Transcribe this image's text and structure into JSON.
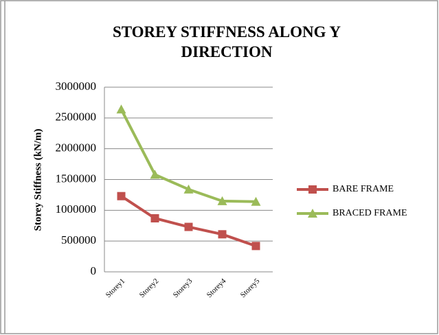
{
  "chart_data": {
    "type": "line",
    "title": "STOREY STIFFNESS ALONG Y DIRECTION",
    "y_label": "Storey Stiffness (kN/m)",
    "categories": [
      "Storey1",
      "Storey2",
      "Storey3",
      "Storey4",
      "Storey5"
    ],
    "series": [
      {
        "name": "BARE FRAME",
        "color": "#c0504d",
        "marker": "square",
        "values": [
          1230000,
          870000,
          730000,
          610000,
          420000
        ]
      },
      {
        "name": "BRACED FRAME",
        "color": "#9bbb59",
        "marker": "triangle",
        "values": [
          2640000,
          1580000,
          1340000,
          1150000,
          1140000
        ]
      }
    ],
    "ylim": [
      0,
      3000000
    ],
    "yticks": [
      0,
      500000,
      1000000,
      1500000,
      2000000,
      2500000,
      3000000
    ],
    "grid": true,
    "legend": "right"
  }
}
